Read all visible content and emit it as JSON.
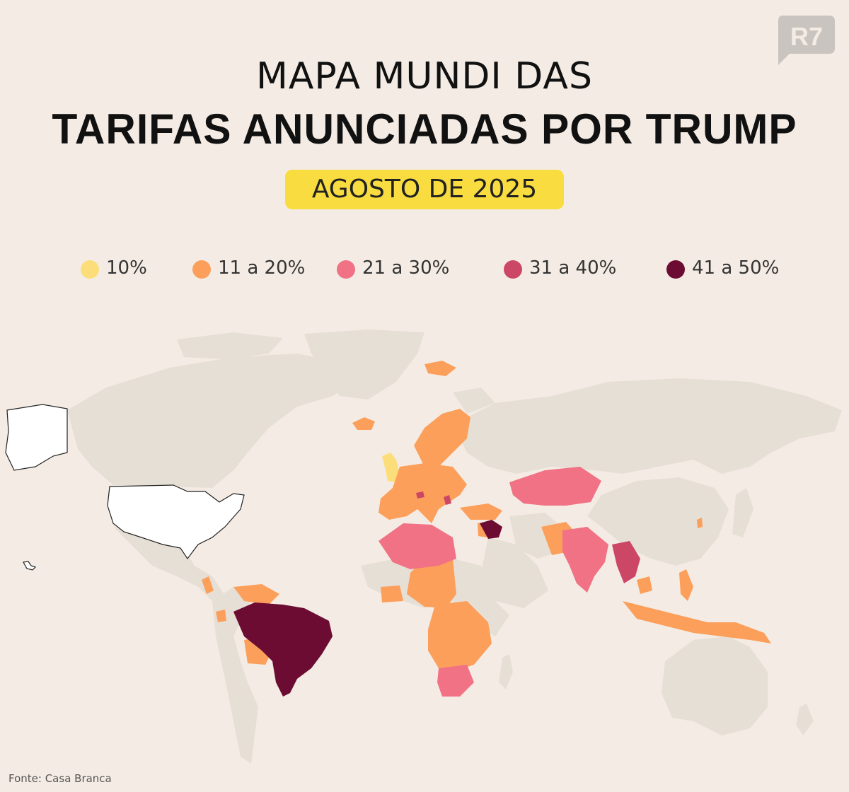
{
  "brand": {
    "logo_text": "R7"
  },
  "title": {
    "line1": "MAPA MUNDI DAS",
    "line2": "TARIFAS ANUNCIADAS POR TRUMP"
  },
  "date_badge": {
    "label": "AGOSTO DE 2025",
    "color": "#f9dc3f"
  },
  "legend": [
    {
      "label": "10%",
      "color": "#fbde7a"
    },
    {
      "label": "11 a 20%",
      "color": "#fc9f5b"
    },
    {
      "label": "21 a 30%",
      "color": "#f07284"
    },
    {
      "label": "31 a 40%",
      "color": "#cc4766"
    },
    {
      "label": "41 a 50%",
      "color": "#6c0c33"
    }
  ],
  "map_colors": {
    "background": "#f4ece4",
    "land_no_data": "#e6dfd5",
    "usa_fill": "#ffffff",
    "usa_outline": "#222222"
  },
  "source": "Fonte: Casa Branca"
}
